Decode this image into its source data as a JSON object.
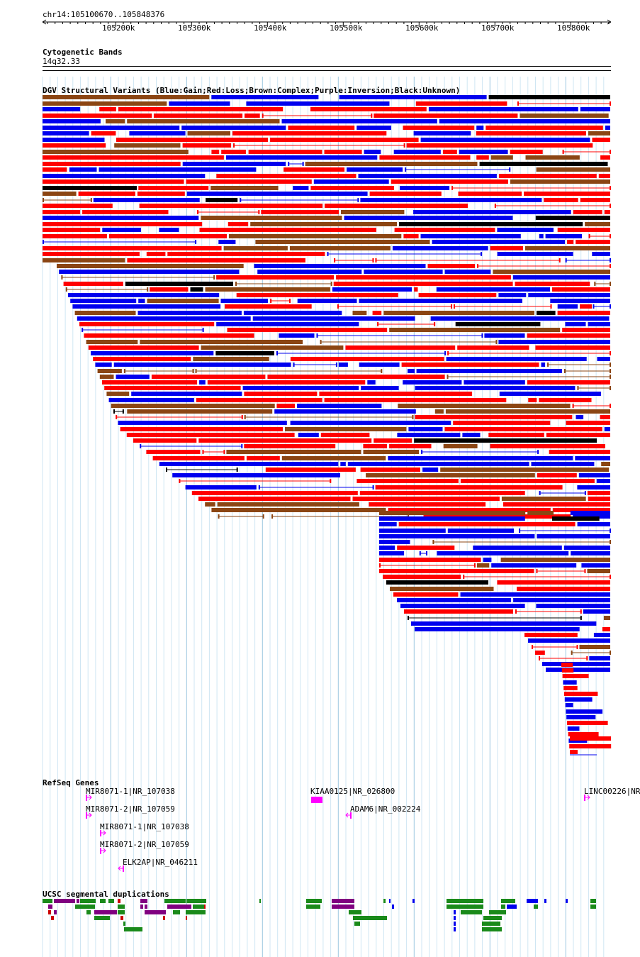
{
  "header": {
    "coordinates": "chr14:105100670..105848376"
  },
  "ruler": {
    "ticks": [
      "105200k",
      "105300k",
      "105400k",
      "105500k",
      "105600k",
      "105700k",
      "105800k"
    ]
  },
  "cytobands": {
    "title": "Cytogenetic Bands",
    "band": "14q32.33"
  },
  "dgv": {
    "title": "DGV Structural Variants (Blue:Gain;Red:Loss;Brown:Complex;Purple:Inversion;Black:Unknown)",
    "colors": {
      "gain": "#0000ee",
      "loss": "#ff0000",
      "complex": "#8b4513",
      "inversion": "#800080",
      "unknown": "#000000"
    }
  },
  "refseq": {
    "title": "RefSeq Genes",
    "color": "#ff00ff",
    "genes": [
      {
        "label": "MIR8071-1|NR_107038"
      },
      {
        "label": "MIR8071-2|NR_107059"
      },
      {
        "label": "MIR8071-1|NR_107038"
      },
      {
        "label": "MIR8071-2|NR_107059"
      },
      {
        "label": "ELK2AP|NR_046211"
      },
      {
        "label": "KIAA0125|NR_026800"
      },
      {
        "label": "ADAM6|NR_002224"
      },
      {
        "label": "LINC00226|NR"
      }
    ]
  },
  "segdups": {
    "title": "UCSC segmental duplications",
    "colors": {
      "green": "#1a8a1a",
      "purple": "#800080",
      "red": "#cc0000",
      "blue": "#0000ee"
    }
  }
}
